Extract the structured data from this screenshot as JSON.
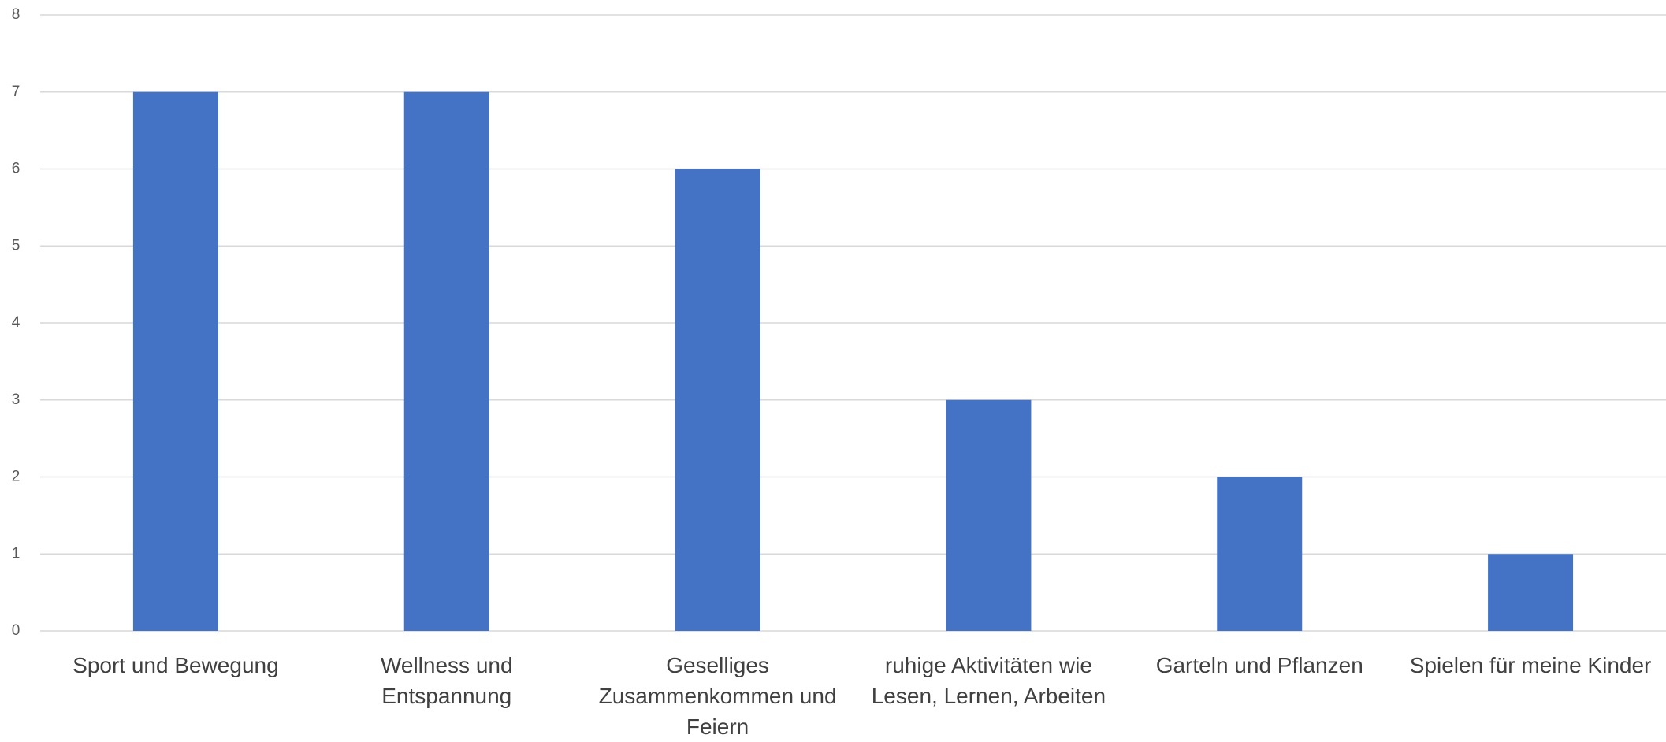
{
  "chart_data": {
    "type": "bar",
    "categories": [
      "Sport und Bewegung",
      "Wellness und Entspannung",
      "Geselliges Zusammenkommen und Feiern",
      "ruhige Aktivitäten wie Lesen, Lernen, Arbeiten",
      "Garteln und Pflanzen",
      "Spielen für meine Kinder"
    ],
    "values": [
      7,
      7,
      6,
      3,
      2,
      1
    ],
    "color": "#4472c4",
    "ylim": [
      0,
      8
    ],
    "yticks": [
      0,
      1,
      2,
      3,
      4,
      5,
      6,
      7,
      8
    ],
    "grid": true
  }
}
